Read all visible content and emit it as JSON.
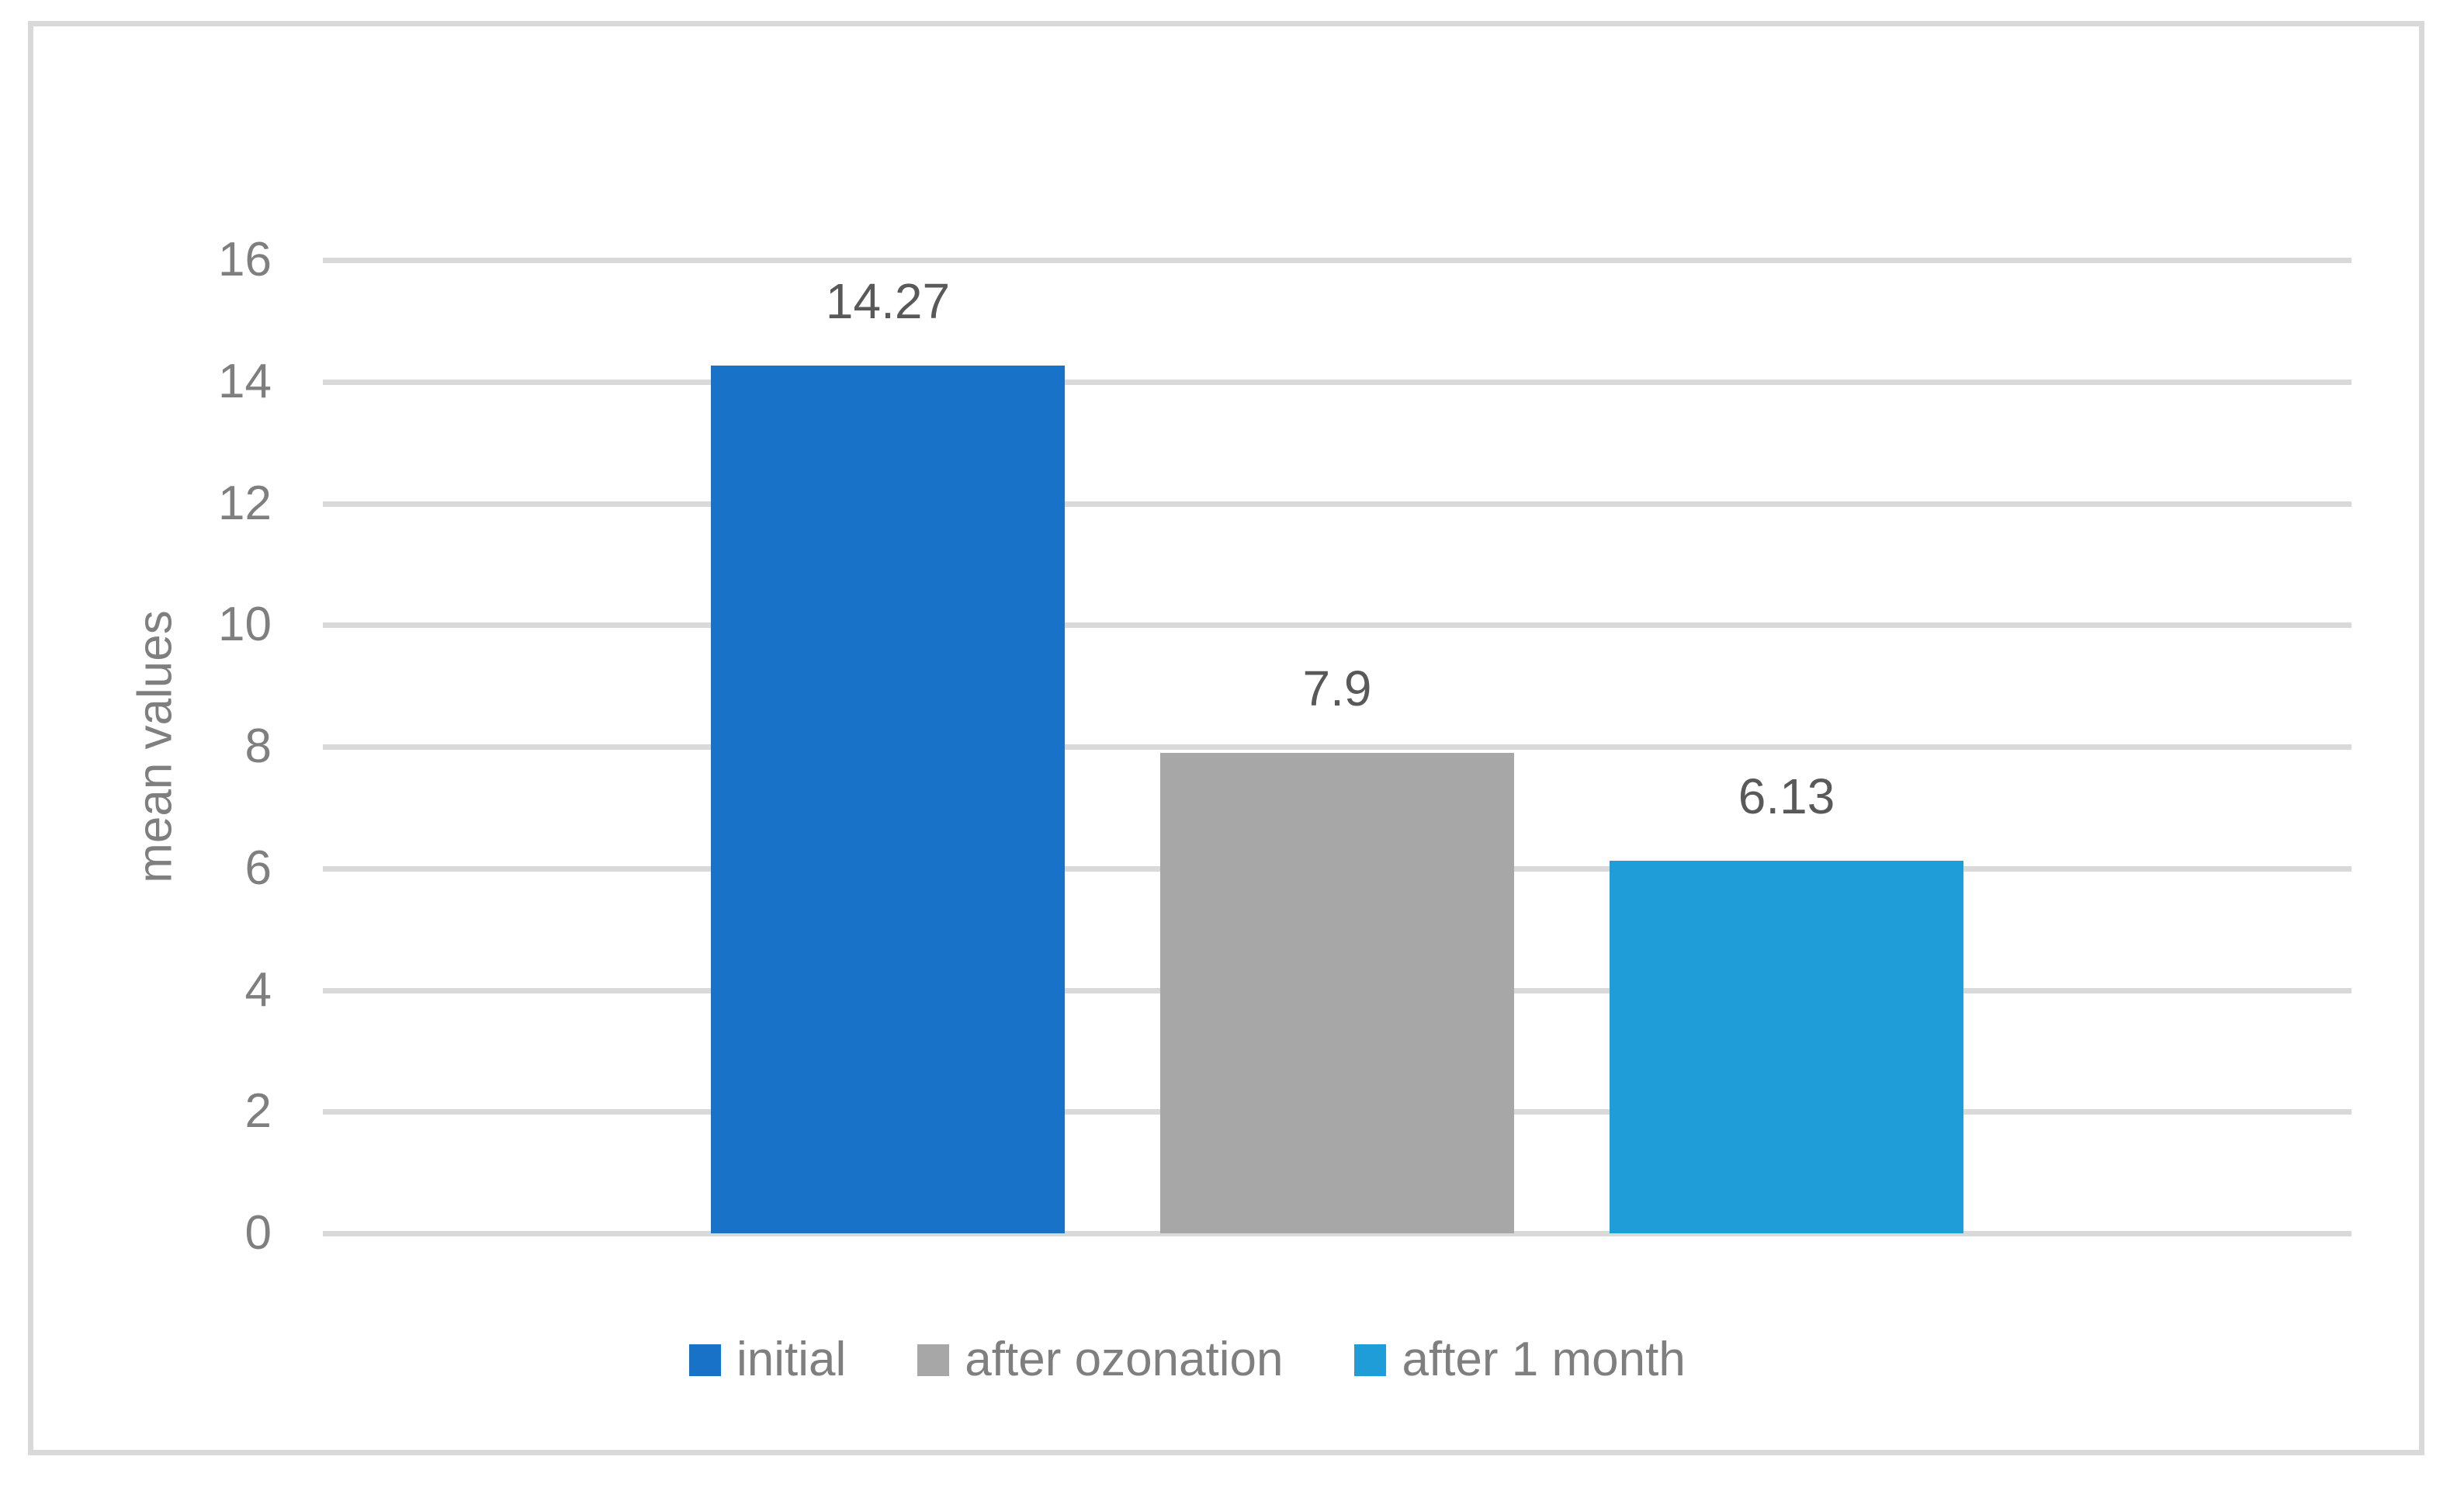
{
  "chart_data": {
    "type": "bar",
    "title": "",
    "xlabel": "",
    "ylabel": "mean values",
    "ylim": [
      0,
      16
    ],
    "ytick_step": 2,
    "ytick_labels": [
      "0",
      "2",
      "4",
      "6",
      "8",
      "10",
      "12",
      "14",
      "16"
    ],
    "grid": true,
    "legend_position": "bottom",
    "categories": [
      ""
    ],
    "series": [
      {
        "name": "initial",
        "value": 14.27,
        "label": "14.27",
        "color": "#1873C8"
      },
      {
        "name": "after ozonation",
        "value": 7.9,
        "label": "7.9",
        "color": "#A7A7A7"
      },
      {
        "name": "after 1 month",
        "value": 6.13,
        "label": "6.13",
        "color": "#1E9DD8"
      }
    ]
  },
  "colors": {
    "background": "#FFFFFF",
    "frame_border": "#D9D9D9",
    "gridline": "#D9D9D9",
    "tick_text": "#7F7F7F",
    "axis_title_text": "#7F7F7F",
    "legend_text": "#7F7F7F",
    "data_label_text": "#595959"
  }
}
